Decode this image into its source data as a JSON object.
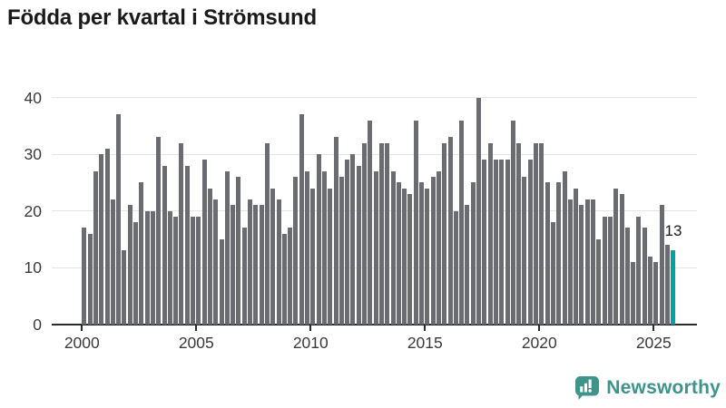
{
  "title": "Födda per kvartal i Strömsund",
  "annotation": {
    "label": "13"
  },
  "branding": {
    "logo_text": "Newsworthy",
    "color": "#3d948a"
  },
  "chart_data": {
    "type": "bar",
    "title": "Födda per kvartal i Strömsund",
    "xlabel": "",
    "ylabel": "",
    "ylim": [
      0,
      40
    ],
    "y_ticks": [
      0,
      10,
      20,
      30,
      40
    ],
    "x_tick_labels": [
      "2000",
      "2005",
      "2010",
      "2015",
      "2020",
      "2025"
    ],
    "grid": "horizontal",
    "legend": "none",
    "highlight": {
      "index": 103,
      "label": "13"
    },
    "colors": {
      "bar": "#6b6b72",
      "highlight": "#00a0a6",
      "grid": "#e4e4e4",
      "axis": "#2b2b2b",
      "tick_label": "#3a3a3a",
      "title": "#1a1a1a"
    },
    "categories": [
      "2000Q1",
      "2000Q2",
      "2000Q3",
      "2000Q4",
      "2001Q1",
      "2001Q2",
      "2001Q3",
      "2001Q4",
      "2002Q1",
      "2002Q2",
      "2002Q3",
      "2002Q4",
      "2003Q1",
      "2003Q2",
      "2003Q3",
      "2003Q4",
      "2004Q1",
      "2004Q2",
      "2004Q3",
      "2004Q4",
      "2005Q1",
      "2005Q2",
      "2005Q3",
      "2005Q4",
      "2006Q1",
      "2006Q2",
      "2006Q3",
      "2006Q4",
      "2007Q1",
      "2007Q2",
      "2007Q3",
      "2007Q4",
      "2008Q1",
      "2008Q2",
      "2008Q3",
      "2008Q4",
      "2009Q1",
      "2009Q2",
      "2009Q3",
      "2009Q4",
      "2010Q1",
      "2010Q2",
      "2010Q3",
      "2010Q4",
      "2011Q1",
      "2011Q2",
      "2011Q3",
      "2011Q4",
      "2012Q1",
      "2012Q2",
      "2012Q3",
      "2012Q4",
      "2013Q1",
      "2013Q2",
      "2013Q3",
      "2013Q4",
      "2014Q1",
      "2014Q2",
      "2014Q3",
      "2014Q4",
      "2015Q1",
      "2015Q2",
      "2015Q3",
      "2015Q4",
      "2016Q1",
      "2016Q2",
      "2016Q3",
      "2016Q4",
      "2017Q1",
      "2017Q2",
      "2017Q3",
      "2017Q4",
      "2018Q1",
      "2018Q2",
      "2018Q3",
      "2018Q4",
      "2019Q1",
      "2019Q2",
      "2019Q3",
      "2019Q4",
      "2020Q1",
      "2020Q2",
      "2020Q3",
      "2020Q4",
      "2021Q1",
      "2021Q2",
      "2021Q3",
      "2021Q4",
      "2022Q1",
      "2022Q2",
      "2022Q3",
      "2022Q4",
      "2023Q1",
      "2023Q2",
      "2023Q3",
      "2023Q4",
      "2024Q1",
      "2024Q2",
      "2024Q3",
      "2024Q4",
      "2025Q1",
      "2025Q2",
      "2025Q3",
      "2025Q4"
    ],
    "values": [
      17,
      16,
      27,
      30,
      31,
      22,
      37,
      13,
      21,
      18,
      25,
      20,
      20,
      33,
      28,
      20,
      19,
      32,
      28,
      19,
      19,
      29,
      24,
      22,
      15,
      27,
      21,
      26,
      17,
      22,
      21,
      21,
      32,
      24,
      22,
      16,
      17,
      26,
      37,
      27,
      24,
      30,
      27,
      24,
      33,
      26,
      29,
      30,
      28,
      32,
      36,
      27,
      32,
      32,
      27,
      25,
      24,
      23,
      36,
      25,
      24,
      26,
      27,
      32,
      33,
      20,
      36,
      21,
      25,
      40,
      29,
      32,
      29,
      29,
      29,
      36,
      32,
      26,
      29,
      32,
      32,
      25,
      18,
      25,
      27,
      22,
      24,
      21,
      22,
      22,
      15,
      19,
      19,
      24,
      23,
      17,
      11,
      19,
      17,
      12,
      11,
      21,
      14,
      13
    ]
  }
}
